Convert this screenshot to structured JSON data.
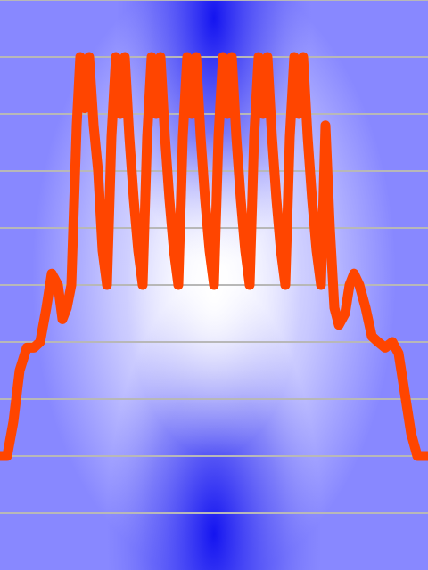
{
  "chart_data": {
    "type": "line",
    "title": "",
    "xlabel": "",
    "ylabel": "",
    "grid": true,
    "legend": "none",
    "xlim": [
      0,
      480
    ],
    "ylim": [
      -1,
      9
    ],
    "gridlines_y": [
      0,
      1,
      2,
      3,
      4,
      5,
      6,
      7,
      8,
      9
    ],
    "series": [
      {
        "color": "#ff4500",
        "x": [
          0,
          8,
          15,
          22,
          30,
          38,
          45,
          52,
          58,
          65,
          70,
          75,
          80,
          86,
          90,
          95,
          100,
          105,
          110,
          115,
          120,
          125,
          130,
          135,
          140,
          145,
          150,
          155,
          160,
          165,
          170,
          175,
          180,
          185,
          190,
          195,
          200,
          205,
          210,
          215,
          220,
          225,
          230,
          235,
          240,
          245,
          250,
          255,
          260,
          265,
          270,
          275,
          280,
          285,
          290,
          295,
          300,
          305,
          310,
          315,
          320,
          325,
          330,
          335,
          340,
          345,
          350,
          355,
          360,
          365,
          370,
          375,
          380,
          387,
          392,
          397,
          403,
          410,
          417,
          424,
          432,
          440,
          447,
          454,
          461,
          468,
          474,
          480
        ],
        "y": [
          1.0,
          1.0,
          1.6,
          2.5,
          2.9,
          2.9,
          3.0,
          3.6,
          4.2,
          4.0,
          3.4,
          3.6,
          4.0,
          6.8,
          8.0,
          7.1,
          8.0,
          6.8,
          6.0,
          4.6,
          4.0,
          6.6,
          8.0,
          7.0,
          8.0,
          6.6,
          5.5,
          4.6,
          4.0,
          6.6,
          8.0,
          7.0,
          8.0,
          6.6,
          5.5,
          4.6,
          4.0,
          6.6,
          8.0,
          7.0,
          8.0,
          6.6,
          5.5,
          4.6,
          4.0,
          6.6,
          8.0,
          7.0,
          8.0,
          6.6,
          5.5,
          4.6,
          4.0,
          6.6,
          8.0,
          7.0,
          8.0,
          6.6,
          5.5,
          4.6,
          4.0,
          6.6,
          8.0,
          7.0,
          8.0,
          6.6,
          5.5,
          4.6,
          4.0,
          6.8,
          5.0,
          3.6,
          3.3,
          3.5,
          4.0,
          4.2,
          4.0,
          3.6,
          3.1,
          3.0,
          2.9,
          3.0,
          2.8,
          2.1,
          1.4,
          1.0,
          1.0,
          1.0
        ]
      }
    ]
  },
  "colors": {
    "background_center": "#ffffff",
    "background_blue": "#1a1af0",
    "gridline": "#b8b8b8",
    "line": "#ff4500"
  }
}
